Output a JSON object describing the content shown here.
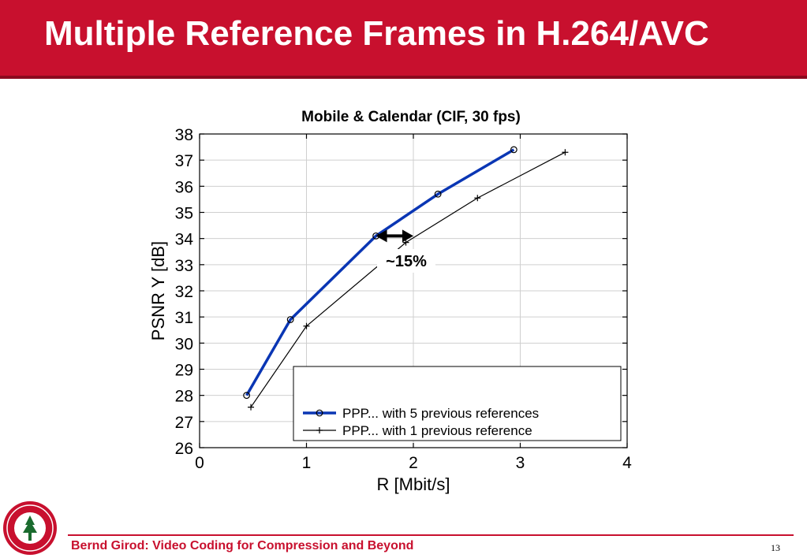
{
  "slide": {
    "title": "Multiple Reference Frames in H.264/AVC",
    "footer_text": "Bernd Girod: Video Coding for Compression and Beyond",
    "page_number": "13",
    "logo_icon": "stanford-seal-icon",
    "accent_color": "#c8102e"
  },
  "chart_data": {
    "type": "line",
    "title": "Mobile & Calendar (CIF, 30 fps)",
    "xlabel": "R [Mbit/s]",
    "ylabel": "PSNR Y [dB]",
    "xlim": [
      0,
      4
    ],
    "ylim": [
      26,
      38
    ],
    "x_ticks": [
      0,
      1,
      2,
      3,
      4
    ],
    "y_ticks": [
      26,
      27,
      28,
      29,
      30,
      31,
      32,
      33,
      34,
      35,
      36,
      37,
      38
    ],
    "grid": true,
    "legend_position": "bottom-right",
    "series": [
      {
        "name": "PPP... with 5 previous references",
        "color": "#0a36b4",
        "marker": "circle",
        "points": [
          [
            0.44,
            28.0
          ],
          [
            0.85,
            30.9
          ],
          [
            1.65,
            34.1
          ],
          [
            2.23,
            35.7
          ],
          [
            2.94,
            37.4
          ]
        ]
      },
      {
        "name": "PPP... with 1 previous reference",
        "color": "#000000",
        "marker": "plus",
        "points": [
          [
            0.48,
            27.55
          ],
          [
            1.0,
            30.65
          ],
          [
            1.93,
            33.85
          ],
          [
            2.6,
            35.55
          ],
          [
            3.42,
            37.3
          ]
        ]
      }
    ],
    "annotation": {
      "text": "~15%",
      "arrow_y": 34.1,
      "arrow_x": [
        1.65,
        2.0
      ]
    }
  }
}
